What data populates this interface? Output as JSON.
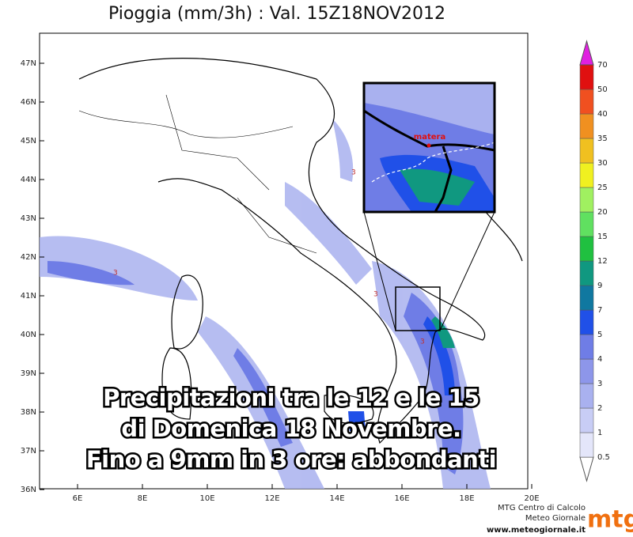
{
  "header": {
    "title": "Pioggia (mm/3h) : Val. 15Z18NOV2012"
  },
  "map": {
    "lat_labels": [
      "47N",
      "46N",
      "45N",
      "44N",
      "43N",
      "42N",
      "41N",
      "40N",
      "39N",
      "38N",
      "37N",
      "36N"
    ],
    "lon_labels": [
      "6E",
      "8E",
      "10E",
      "12E",
      "14E",
      "16E",
      "18E",
      "20E"
    ],
    "contour_labels": [
      "3",
      "3",
      "3",
      "3"
    ],
    "inset_label": "matera"
  },
  "colorbar": {
    "labels": [
      0.5,
      1,
      2,
      3,
      4,
      5,
      7,
      9,
      12,
      15,
      20,
      25,
      30,
      35,
      40,
      50,
      70
    ],
    "colors": [
      "#ffffff",
      "#e4e6fa",
      "#c8cdf5",
      "#a9b1ef",
      "#8d96ea",
      "#6f7de6",
      "#2050e8",
      "#1078a0",
      "#109880",
      "#20c040",
      "#60e060",
      "#a0f060",
      "#f0f020",
      "#f0c020",
      "#f09020",
      "#f05020",
      "#e01010",
      "#e020e0"
    ]
  },
  "overlay": {
    "lines": [
      "Precipitazioni tra le 12 e le 15",
      "di Domenica 18 Novembre.",
      "Fino a 9mm in 3 ore: abbondanti"
    ]
  },
  "footer": {
    "org": "MTG Centro di Calcolo",
    "brand": "Meteo Giornale",
    "url": "www.meteogiornale.it",
    "logo": "mtg"
  }
}
